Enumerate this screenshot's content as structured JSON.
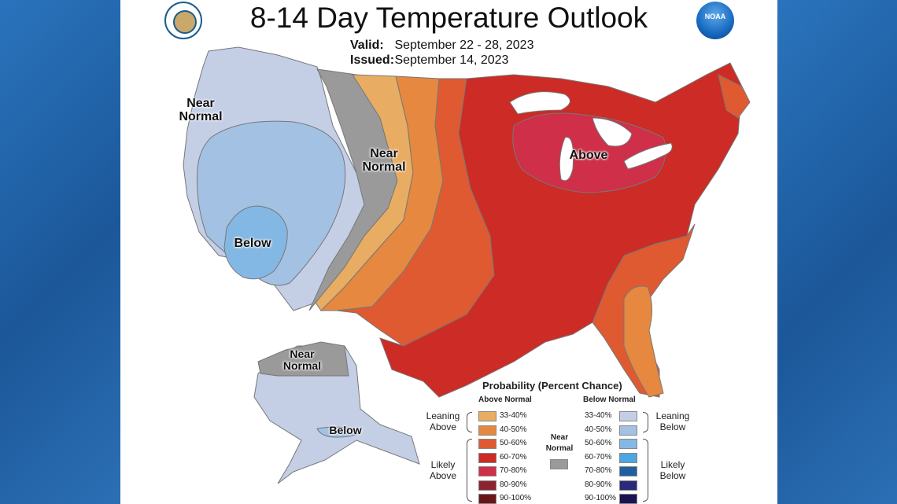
{
  "title": "8-14 Day Temperature Outlook",
  "valid_label": "Valid:",
  "valid_value": "September 22 - 28, 2023",
  "issued_label": "Issued:",
  "issued_value": "September 14, 2023",
  "logos": {
    "left": "commerce-seal",
    "right": "noaa-logo",
    "noaa_text": "NOAA"
  },
  "map_labels": {
    "near_normal_west": "Near Normal",
    "near_normal_central": "Near Normal",
    "above": "Above",
    "below_southwest": "Below",
    "near_normal_alaska": "Near Normal",
    "below_alaska": "Below"
  },
  "legend": {
    "title": "Probability (Percent Chance)",
    "above_header": "Above Normal",
    "below_header": "Below Normal",
    "near_normal": "Near Normal",
    "leaning_above": "Leaning Above",
    "likely_above": "Likely Above",
    "leaning_below": "Leaning Below",
    "likely_below": "Likely Below",
    "above_rows": [
      {
        "label": "33-40%",
        "color": "#e8ad63"
      },
      {
        "label": "40-50%",
        "color": "#e6883f"
      },
      {
        "label": "50-60%",
        "color": "#df5a31"
      },
      {
        "label": "60-70%",
        "color": "#cc2b26"
      },
      {
        "label": "70-80%",
        "color": "#cf2f48"
      },
      {
        "label": "80-90%",
        "color": "#8e2330"
      },
      {
        "label": "90-100%",
        "color": "#6a1518"
      }
    ],
    "below_rows": [
      {
        "label": "33-40%",
        "color": "#c4cfe6"
      },
      {
        "label": "40-50%",
        "color": "#a3c1e2"
      },
      {
        "label": "50-60%",
        "color": "#84b8e4"
      },
      {
        "label": "60-70%",
        "color": "#4da6e1"
      },
      {
        "label": "70-80%",
        "color": "#1f5f9f"
      },
      {
        "label": "80-90%",
        "color": "#2a2a7a"
      },
      {
        "label": "90-100%",
        "color": "#1a1450"
      }
    ],
    "near_normal_color": "#9a9a9a"
  },
  "colors": {
    "frame_blue": "#1f5fa5",
    "near_normal": "#9a9a9a"
  }
}
